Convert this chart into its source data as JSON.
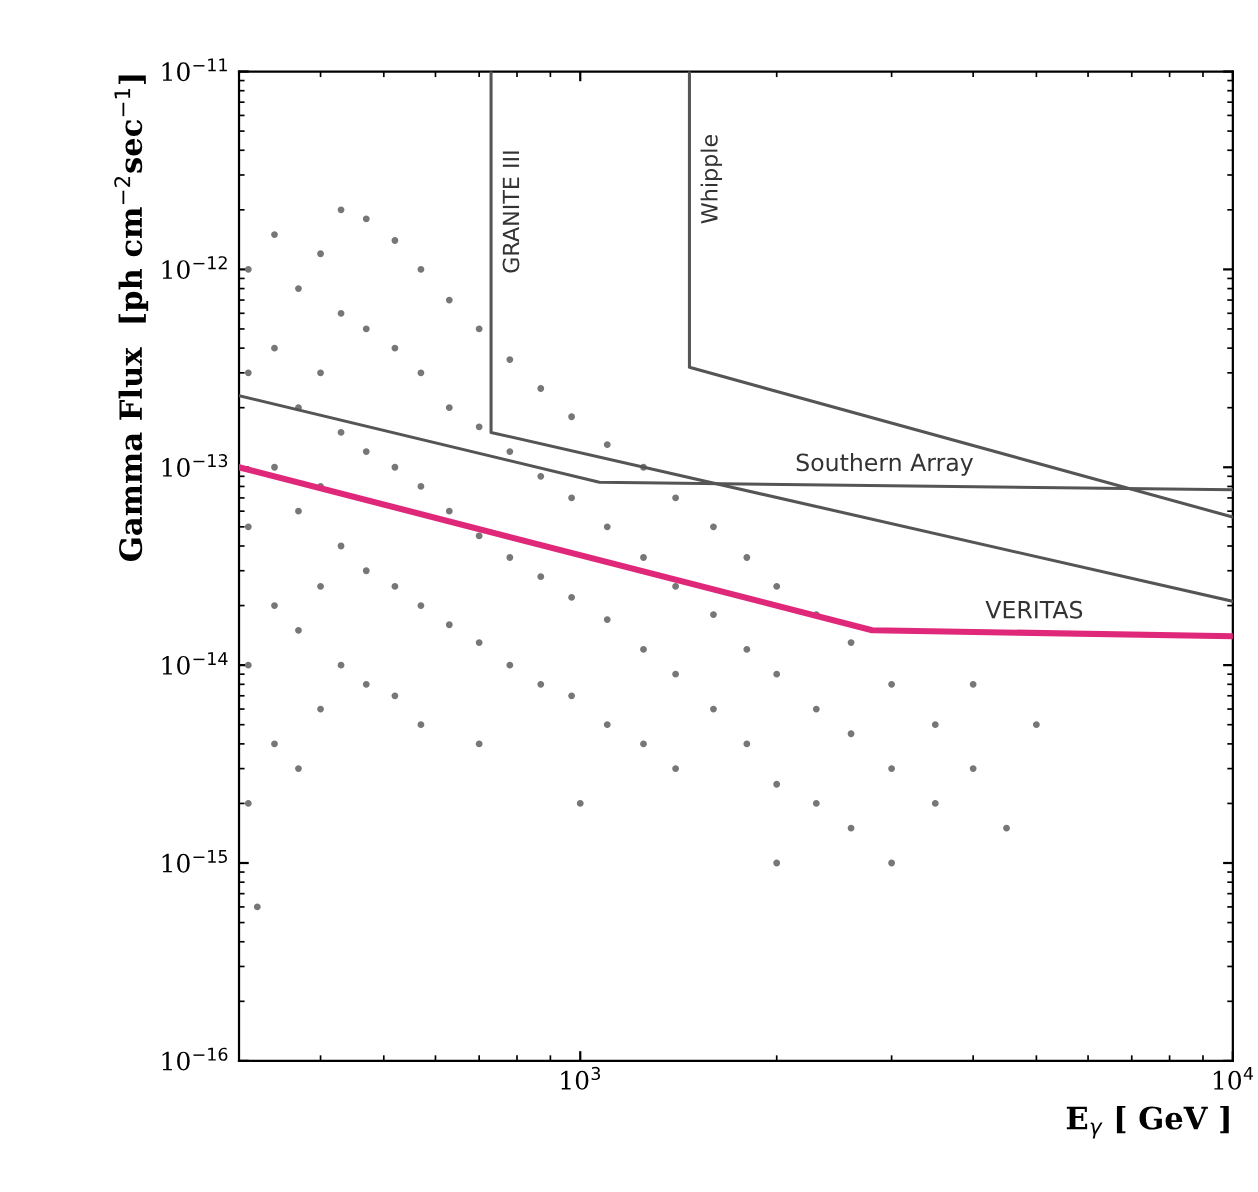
{
  "chart_data": {
    "type": "line",
    "xlabel": "E$_{γ}$ [ GeV ]",
    "ylabel": "Gamma Flux  [ph cm$^{−2}$sec$^{−1}$]",
    "xlim": [
      300,
      10000
    ],
    "ylim": [
      1e-16,
      1e-11
    ],
    "xticks": [
      {
        "value": 1000,
        "label": "10$^{3}$"
      },
      {
        "value": 10000,
        "label": "10$^{4}$"
      }
    ],
    "yticks": [
      {
        "value": 1e-16,
        "label": "10$^{−16}$"
      },
      {
        "value": 1e-15,
        "label": "10$^{−15}$"
      },
      {
        "value": 1e-14,
        "label": "10$^{−14}$"
      },
      {
        "value": 1e-13,
        "label": "10$^{−13}$"
      },
      {
        "value": 1e-12,
        "label": "10$^{−12}$"
      },
      {
        "value": 1e-11,
        "label": "10$^{−11}$"
      }
    ],
    "log": "xy",
    "grid": false,
    "legend": false,
    "series": [
      {
        "type": "scatter",
        "color": "#777777",
        "marker": "circle",
        "x": [
          310,
          310,
          310,
          310,
          310,
          320,
          340,
          340,
          340,
          340,
          340,
          370,
          370,
          370,
          370,
          370,
          400,
          400,
          400,
          400,
          400,
          430,
          430,
          430,
          430,
          430,
          470,
          470,
          470,
          470,
          470,
          520,
          520,
          520,
          520,
          520,
          570,
          570,
          570,
          570,
          570,
          630,
          630,
          630,
          630,
          700,
          700,
          700,
          700,
          700,
          780,
          780,
          780,
          780,
          870,
          870,
          870,
          870,
          970,
          970,
          970,
          970,
          1100,
          1100,
          1100,
          1100,
          1250,
          1250,
          1250,
          1250,
          1400,
          1400,
          1400,
          1400,
          1600,
          1600,
          1600,
          1800,
          1800,
          1800,
          2000,
          2000,
          2000,
          2300,
          2300,
          2300,
          2600,
          2600,
          2600,
          3000,
          3000,
          3000,
          3500,
          3500,
          4000,
          4000,
          4500,
          5000,
          1000,
          2000
        ],
        "values": [
          1e-12,
          3e-13,
          5e-14,
          1e-14,
          2e-15,
          6e-16,
          1.5e-12,
          4e-13,
          1e-13,
          2e-14,
          4e-15,
          8e-13,
          2e-13,
          6e-14,
          1.5e-14,
          3e-15,
          1.2e-12,
          3e-13,
          8e-14,
          2.5e-14,
          6e-15,
          2e-12,
          6e-13,
          1.5e-13,
          4e-14,
          1e-14,
          1.8e-12,
          5e-13,
          1.2e-13,
          3e-14,
          8e-15,
          1.4e-12,
          4e-13,
          1e-13,
          2.5e-14,
          7e-15,
          1e-12,
          3e-13,
          8e-14,
          2e-14,
          5e-15,
          7e-13,
          2e-13,
          6e-14,
          1.6e-14,
          5e-13,
          1.6e-13,
          4.5e-14,
          1.3e-14,
          4e-15,
          3.5e-13,
          1.2e-13,
          3.5e-14,
          1e-14,
          2.5e-13,
          9e-14,
          2.8e-14,
          8e-15,
          1.8e-13,
          7e-14,
          2.2e-14,
          7e-15,
          1.3e-13,
          5e-14,
          1.7e-14,
          5e-15,
          1e-13,
          3.5e-14,
          1.2e-14,
          4e-15,
          7e-14,
          2.5e-14,
          9e-15,
          3e-15,
          5e-14,
          1.8e-14,
          6e-15,
          3.5e-14,
          1.2e-14,
          4e-15,
          2.5e-14,
          9e-15,
          2.5e-15,
          1.8e-14,
          6e-15,
          2e-15,
          1.3e-14,
          4.5e-15,
          1.5e-15,
          8e-15,
          3e-15,
          1e-15,
          5e-15,
          2e-15,
          8e-15,
          3e-15,
          1.5e-15,
          5e-15,
          2e-15,
          1e-15
        ]
      },
      {
        "name": "GRANITE III",
        "color": "#555555",
        "x": [
          730,
          730,
          10000
        ],
        "values": [
          1e-11,
          1.5e-13,
          2.1e-14
        ]
      },
      {
        "name": "Whipple",
        "color": "#555555",
        "x": [
          1470,
          1470,
          10000
        ],
        "values": [
          1e-11,
          3.2e-13,
          5.6e-14
        ]
      },
      {
        "name": "Southern Array",
        "color": "#555555",
        "x": [
          300,
          1070,
          10000
        ],
        "values": [
          2.3e-13,
          8.4e-14,
          7.7e-14
        ]
      },
      {
        "name": "VERITAS",
        "color": "#e0287a",
        "x": [
          300,
          2800,
          10000
        ],
        "values": [
          1e-13,
          1.5e-14,
          1.4e-14
        ]
      }
    ]
  }
}
